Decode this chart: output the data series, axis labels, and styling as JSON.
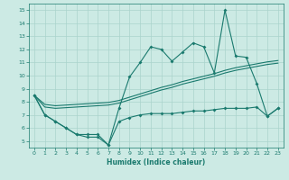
{
  "xlabel": "Humidex (Indice chaleur)",
  "x": [
    0,
    1,
    2,
    3,
    4,
    5,
    6,
    7,
    8,
    9,
    10,
    11,
    12,
    13,
    14,
    15,
    16,
    17,
    18,
    19,
    20,
    21,
    22,
    23
  ],
  "y_max": [
    8.5,
    7.0,
    6.5,
    6.0,
    5.5,
    5.5,
    5.5,
    4.7,
    7.5,
    9.9,
    11.0,
    12.2,
    12.0,
    11.1,
    11.8,
    12.5,
    12.2,
    10.2,
    15.0,
    11.5,
    11.4,
    9.4,
    6.9,
    7.5
  ],
  "y_min": [
    8.5,
    7.0,
    6.5,
    6.0,
    5.5,
    5.3,
    5.3,
    4.7,
    6.5,
    6.8,
    7.0,
    7.1,
    7.1,
    7.1,
    7.2,
    7.3,
    7.3,
    7.4,
    7.5,
    7.5,
    7.5,
    7.6,
    6.9,
    7.5
  ],
  "y_avg1": [
    8.5,
    7.8,
    7.7,
    7.75,
    7.8,
    7.85,
    7.9,
    7.95,
    8.1,
    8.35,
    8.6,
    8.85,
    9.1,
    9.3,
    9.55,
    9.75,
    9.95,
    10.15,
    10.4,
    10.6,
    10.75,
    10.9,
    11.05,
    11.15
  ],
  "y_avg2": [
    8.5,
    7.6,
    7.5,
    7.55,
    7.6,
    7.65,
    7.7,
    7.75,
    7.9,
    8.15,
    8.4,
    8.65,
    8.9,
    9.1,
    9.35,
    9.55,
    9.75,
    9.95,
    10.2,
    10.4,
    10.55,
    10.7,
    10.85,
    10.95
  ],
  "line_color": "#1a7a6e",
  "bg_color": "#cceae4",
  "grid_color": "#aad4cc",
  "ylim": [
    4.5,
    15.5
  ],
  "xlim": [
    -0.5,
    23.5
  ],
  "yticks": [
    5,
    6,
    7,
    8,
    9,
    10,
    11,
    12,
    13,
    14,
    15
  ],
  "xticks": [
    0,
    1,
    2,
    3,
    4,
    5,
    6,
    7,
    8,
    9,
    10,
    11,
    12,
    13,
    14,
    15,
    16,
    17,
    18,
    19,
    20,
    21,
    22,
    23
  ]
}
